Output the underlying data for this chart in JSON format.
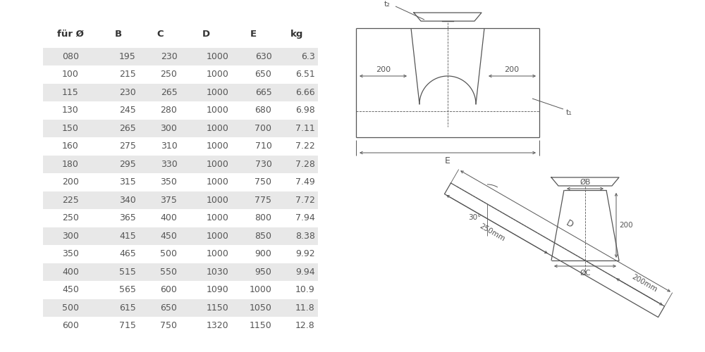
{
  "table_headers": [
    "für Ø",
    "B",
    "C",
    "D",
    "E",
    "kg"
  ],
  "table_rows": [
    [
      "080",
      "195",
      "230",
      "1000",
      "630",
      "6.3"
    ],
    [
      "100",
      "215",
      "250",
      "1000",
      "650",
      "6.51"
    ],
    [
      "115",
      "230",
      "265",
      "1000",
      "665",
      "6.66"
    ],
    [
      "130",
      "245",
      "280",
      "1000",
      "680",
      "6.98"
    ],
    [
      "150",
      "265",
      "300",
      "1000",
      "700",
      "7.11"
    ],
    [
      "160",
      "275",
      "310",
      "1000",
      "710",
      "7.22"
    ],
    [
      "180",
      "295",
      "330",
      "1000",
      "730",
      "7.28"
    ],
    [
      "200",
      "315",
      "350",
      "1000",
      "750",
      "7.49"
    ],
    [
      "225",
      "340",
      "375",
      "1000",
      "775",
      "7.72"
    ],
    [
      "250",
      "365",
      "400",
      "1000",
      "800",
      "7.94"
    ],
    [
      "300",
      "415",
      "450",
      "1000",
      "850",
      "8.38"
    ],
    [
      "350",
      "465",
      "500",
      "1000",
      "900",
      "9.92"
    ],
    [
      "400",
      "515",
      "550",
      "1030",
      "950",
      "9.94"
    ],
    [
      "450",
      "565",
      "600",
      "1090",
      "1000",
      "10.9"
    ],
    [
      "500",
      "615",
      "650",
      "1150",
      "1050",
      "11.8"
    ],
    [
      "600",
      "715",
      "750",
      "1320",
      "1150",
      "12.8"
    ]
  ],
  "shaded_rows": [
    0,
    2,
    4,
    6,
    8,
    10,
    12,
    14
  ],
  "bg_color": "#ffffff",
  "shade_color": "#e8e8e8",
  "text_color": "#555555",
  "header_color": "#333333",
  "line_color": "#555555"
}
